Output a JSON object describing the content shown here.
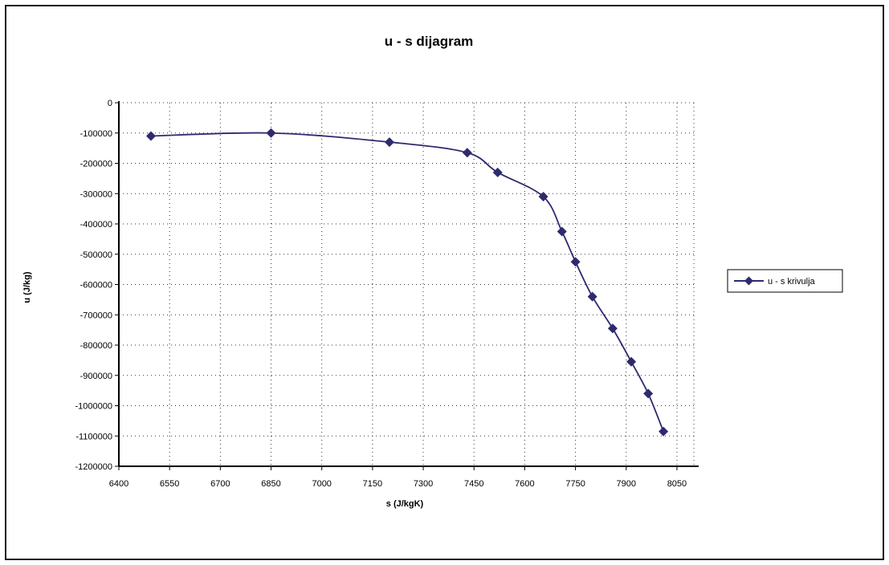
{
  "chart_data": {
    "type": "line",
    "title": "u - s dijagram",
    "xlabel": "s (J/kgK)",
    "ylabel": "u (J/kg)",
    "xlim": [
      6400,
      8100
    ],
    "ylim": [
      -1200000,
      0
    ],
    "x_ticks": [
      6400,
      6550,
      6700,
      6850,
      7000,
      7150,
      7300,
      7450,
      7600,
      7750,
      7900,
      8050
    ],
    "y_ticks": [
      0,
      -100000,
      -200000,
      -300000,
      -400000,
      -500000,
      -600000,
      -700000,
      -800000,
      -900000,
      -1000000,
      -1100000,
      -1200000
    ],
    "grid": true,
    "legend_position": "right",
    "series": [
      {
        "name": "u - s krivulja",
        "color": "#2e2a6e",
        "marker": "diamond",
        "x": [
          6495,
          6850,
          7200,
          7430,
          7520,
          7655,
          7710,
          7750,
          7800,
          7860,
          7915,
          7965,
          8010
        ],
        "y": [
          -110000,
          -100000,
          -130000,
          -165000,
          -230000,
          -310000,
          -425000,
          -525000,
          -640000,
          -745000,
          -855000,
          -960000,
          -1085000
        ]
      }
    ]
  }
}
